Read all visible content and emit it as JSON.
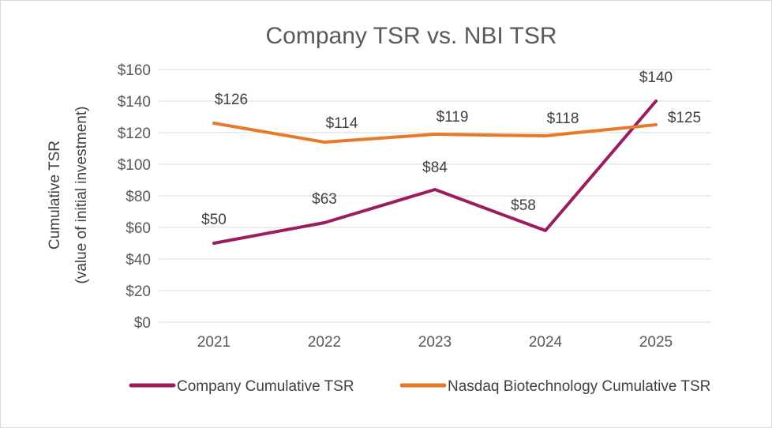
{
  "chart_data": {
    "type": "line",
    "title": "Company TSR vs. NBI TSR",
    "xlabel": "",
    "ylabel": [
      "Cumulative TSR",
      "(value of initial investment)"
    ],
    "categories": [
      "2021",
      "2022",
      "2023",
      "2024",
      "2025"
    ],
    "ylim": [
      0,
      160
    ],
    "yticks": [
      0,
      20,
      40,
      60,
      80,
      100,
      120,
      140,
      160
    ],
    "ytick_labels": [
      "$0",
      "$20",
      "$40",
      "$60",
      "$80",
      "$100",
      "$120",
      "$140",
      "$160"
    ],
    "grid": true,
    "legend_position": "bottom",
    "series": [
      {
        "name": "Company Cumulative TSR",
        "color": "#9b1d5f",
        "values": [
          50,
          63,
          84,
          58,
          140
        ],
        "labels": [
          "$50",
          "$63",
          "$84",
          "$58",
          "$140"
        ]
      },
      {
        "name": "Nasdaq Biotechnology Cumulative TSR",
        "color": "#e8792b",
        "values": [
          126,
          114,
          119,
          118,
          125
        ],
        "labels": [
          "$126",
          "$114",
          "$119",
          "$118",
          "$125"
        ]
      }
    ]
  }
}
